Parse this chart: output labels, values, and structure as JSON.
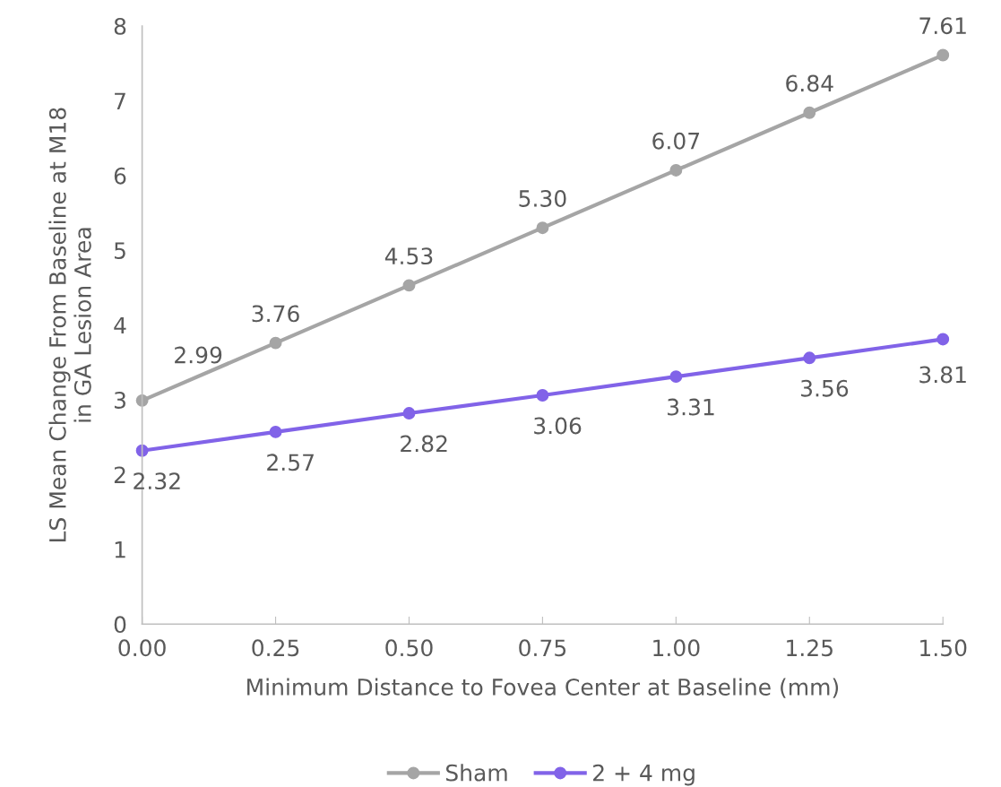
{
  "chart_data": {
    "type": "line",
    "xlabel": "Minimum Distance to Fovea Center at Baseline (mm)",
    "ylabel": "LS Mean Change From Baseline at M18\nin GA Lesion Area",
    "x": [
      0,
      0.25,
      0.5,
      0.75,
      1.0,
      1.25,
      1.5
    ],
    "series": [
      {
        "name": "Sham",
        "color": "#a5a5a5",
        "values": [
          2.99,
          3.76,
          4.53,
          5.3,
          6.07,
          6.84,
          7.61
        ],
        "value_labels": [
          "2.99",
          "3.76",
          "4.53",
          "5.30",
          "6.07",
          "6.84",
          "7.61"
        ]
      },
      {
        "name": "2 + 4 mg",
        "color": "#8163e8",
        "values": [
          2.32,
          2.57,
          2.82,
          3.06,
          3.31,
          3.56,
          3.81
        ],
        "value_labels": [
          "2.32",
          "2.57",
          "2.82",
          "3.06",
          "3.31",
          "3.56",
          "3.81"
        ]
      }
    ],
    "xlim": [
      0,
      1.5
    ],
    "xticks": [
      {
        "value": 0,
        "label": "0.00"
      },
      {
        "value": 0.25,
        "label": "0.25"
      },
      {
        "value": 0.5,
        "label": "0.50"
      },
      {
        "value": 0.75,
        "label": "0.75"
      },
      {
        "value": 1.0,
        "label": "1.00"
      },
      {
        "value": 1.25,
        "label": "1.25"
      },
      {
        "value": 1.5,
        "label": "1.50"
      }
    ],
    "ylim": [
      0,
      8
    ],
    "yticks": [
      0,
      1,
      2,
      3,
      4,
      5,
      6,
      7,
      8
    ],
    "grid": false,
    "legend": "bottom",
    "marker": "circle",
    "line_style": "solid"
  }
}
